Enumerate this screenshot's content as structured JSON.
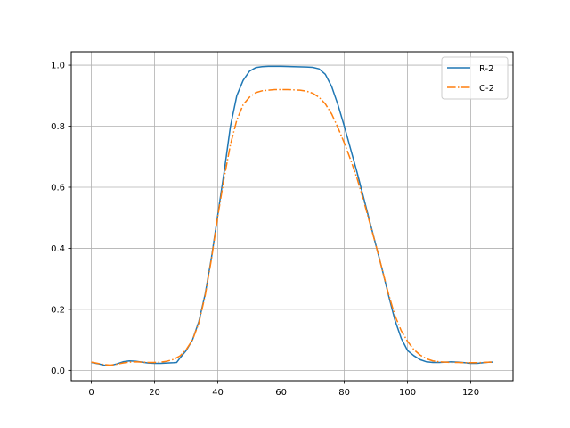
{
  "chart_data": {
    "type": "line",
    "title": "",
    "xlabel": "",
    "ylabel": "",
    "xlim": [
      -6.35,
      133.35
    ],
    "ylim": [
      -0.034,
      1.044
    ],
    "x_ticks": [
      0,
      20,
      40,
      60,
      80,
      100,
      120
    ],
    "y_ticks": [
      0.0,
      0.2,
      0.4,
      0.6,
      0.8,
      1.0
    ],
    "x_tick_labels": [
      "0",
      "20",
      "40",
      "60",
      "80",
      "100",
      "120"
    ],
    "y_tick_labels": [
      "0.0",
      "0.2",
      "0.4",
      "0.6",
      "0.8",
      "1.0"
    ],
    "grid": true,
    "legend_position": "top-right",
    "series": [
      {
        "name": "R-2",
        "color": "#1f77b4",
        "linestyle": "solid",
        "points": [
          [
            0,
            0.026
          ],
          [
            2,
            0.022
          ],
          [
            4,
            0.017
          ],
          [
            6,
            0.016
          ],
          [
            8,
            0.021
          ],
          [
            10,
            0.028
          ],
          [
            12,
            0.031
          ],
          [
            14,
            0.03
          ],
          [
            16,
            0.027
          ],
          [
            18,
            0.024
          ],
          [
            20,
            0.023
          ],
          [
            22,
            0.023
          ],
          [
            24,
            0.024
          ],
          [
            26,
            0.025
          ],
          [
            27,
            0.026
          ],
          [
            28,
            0.04
          ],
          [
            30,
            0.065
          ],
          [
            32,
            0.1
          ],
          [
            34,
            0.16
          ],
          [
            36,
            0.25
          ],
          [
            38,
            0.37
          ],
          [
            40,
            0.51
          ],
          [
            42,
            0.65
          ],
          [
            44,
            0.8
          ],
          [
            46,
            0.9
          ],
          [
            48,
            0.95
          ],
          [
            50,
            0.98
          ],
          [
            52,
            0.992
          ],
          [
            54,
            0.995
          ],
          [
            56,
            0.996
          ],
          [
            60,
            0.996
          ],
          [
            64,
            0.995
          ],
          [
            68,
            0.994
          ],
          [
            70,
            0.993
          ],
          [
            72,
            0.988
          ],
          [
            74,
            0.97
          ],
          [
            76,
            0.93
          ],
          [
            78,
            0.87
          ],
          [
            80,
            0.8
          ],
          [
            82,
            0.725
          ],
          [
            84,
            0.65
          ],
          [
            86,
            0.57
          ],
          [
            88,
            0.49
          ],
          [
            90,
            0.41
          ],
          [
            92,
            0.33
          ],
          [
            94,
            0.245
          ],
          [
            96,
            0.165
          ],
          [
            98,
            0.105
          ],
          [
            100,
            0.065
          ],
          [
            102,
            0.048
          ],
          [
            104,
            0.035
          ],
          [
            106,
            0.028
          ],
          [
            108,
            0.026
          ],
          [
            110,
            0.026
          ],
          [
            112,
            0.027
          ],
          [
            114,
            0.028
          ],
          [
            116,
            0.027
          ],
          [
            118,
            0.025
          ],
          [
            120,
            0.023
          ],
          [
            122,
            0.023
          ],
          [
            124,
            0.025
          ],
          [
            126,
            0.027
          ],
          [
            127,
            0.027
          ]
        ]
      },
      {
        "name": "C-2",
        "color": "#ff7f0e",
        "linestyle": "dashdot",
        "points": [
          [
            0,
            0.027
          ],
          [
            2,
            0.023
          ],
          [
            4,
            0.019
          ],
          [
            6,
            0.017
          ],
          [
            8,
            0.02
          ],
          [
            10,
            0.024
          ],
          [
            12,
            0.027
          ],
          [
            14,
            0.028
          ],
          [
            16,
            0.027
          ],
          [
            18,
            0.026
          ],
          [
            20,
            0.026
          ],
          [
            22,
            0.027
          ],
          [
            24,
            0.03
          ],
          [
            26,
            0.036
          ],
          [
            28,
            0.047
          ],
          [
            30,
            0.068
          ],
          [
            32,
            0.1
          ],
          [
            34,
            0.155
          ],
          [
            36,
            0.245
          ],
          [
            38,
            0.365
          ],
          [
            40,
            0.505
          ],
          [
            42,
            0.63
          ],
          [
            44,
            0.74
          ],
          [
            46,
            0.82
          ],
          [
            48,
            0.87
          ],
          [
            50,
            0.895
          ],
          [
            52,
            0.91
          ],
          [
            54,
            0.916
          ],
          [
            58,
            0.92
          ],
          [
            62,
            0.92
          ],
          [
            66,
            0.918
          ],
          [
            68,
            0.915
          ],
          [
            70,
            0.908
          ],
          [
            72,
            0.895
          ],
          [
            74,
            0.873
          ],
          [
            76,
            0.84
          ],
          [
            78,
            0.795
          ],
          [
            80,
            0.745
          ],
          [
            82,
            0.69
          ],
          [
            84,
            0.63
          ],
          [
            86,
            0.56
          ],
          [
            88,
            0.485
          ],
          [
            90,
            0.41
          ],
          [
            92,
            0.33
          ],
          [
            94,
            0.25
          ],
          [
            96,
            0.18
          ],
          [
            98,
            0.13
          ],
          [
            100,
            0.095
          ],
          [
            102,
            0.068
          ],
          [
            104,
            0.05
          ],
          [
            106,
            0.038
          ],
          [
            108,
            0.031
          ],
          [
            110,
            0.028
          ],
          [
            112,
            0.027
          ],
          [
            114,
            0.026
          ],
          [
            116,
            0.026
          ],
          [
            118,
            0.025
          ],
          [
            120,
            0.025
          ],
          [
            122,
            0.025
          ],
          [
            124,
            0.026
          ],
          [
            126,
            0.027
          ],
          [
            127,
            0.027
          ]
        ]
      }
    ]
  }
}
